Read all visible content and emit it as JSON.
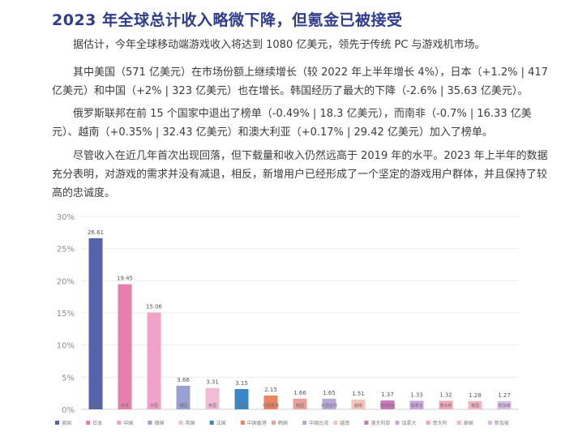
{
  "title": "2023 年全球总计收入略微下降，但氪金已被接受",
  "paragraphs": [
    "据估计，今年全球移动端游戏收入将达到 1080 亿美元，领先于传统 PC 与游戏机市场。",
    "其中美国（571 亿美元）在市场份额上继续增长（较 2022 年上半年增长 4%），日本（+1.2% | 417 亿美元）和中国（+2% | 323 亿美元）也在增长。韩国经历了最大的下降（-2.6% | 35.63 亿美元）。",
    "俄罗斯联邦在前 15 个国家中退出了榜单（-0.49% | 18.3 亿美元），而南非（-0.7% | 16.33 亿美元）、越南（+0.35% | 32.43 亿美元）和澳大利亚（+0.17% | 29.42 亿美元）加入了榜单。",
    "尽管收入在近几年首次出现回落，但下载量和收入仍然远高于 2019 年的水平。2023 年上半年的数据充分表明，对游戏的需求并没有减退，相反，新增用户已经形成了一个坚定的游戏用户群体，并且保持了较高的忠诚度。"
  ],
  "chart_data": {
    "type": "bar",
    "categories": [
      "美国",
      "日本",
      "中国",
      "德国",
      "英国",
      "法国",
      "中国香港",
      "韩国",
      "中国台湾",
      "越南",
      "澳大利亚",
      "加拿大",
      "意大利",
      "泰国",
      "新加坡"
    ],
    "values": [
      26.61,
      19.45,
      15.06,
      3.66,
      3.31,
      3.15,
      2.15,
      1.66,
      1.65,
      1.51,
      1.37,
      1.33,
      1.32,
      1.28,
      1.27
    ],
    "value_labels": [
      "26.61",
      "19.45",
      "15.06",
      "3.66",
      "3.31",
      "3.15",
      "2.15",
      "1.66",
      "1.65",
      "1.51",
      "1.37",
      "1.33",
      "1.32",
      "1.28",
      "1.27"
    ],
    "colors": [
      "#5563ad",
      "#e67fae",
      "#f0a3c6",
      "#9aa0d2",
      "#f2bcd6",
      "#3a86c8",
      "#ec8363",
      "#ee9f9a",
      "#b7a8d8",
      "#f6c3b6",
      "#c878ba",
      "#c7a7db",
      "#f0a8b8",
      "#f4b5c1",
      "#d8bde6"
    ],
    "yticks": [
      "0%",
      "5%",
      "10%",
      "15%",
      "20%",
      "25%",
      "30%"
    ],
    "ylim": [
      0,
      30
    ],
    "grid": true,
    "legend_position": "bottom"
  }
}
